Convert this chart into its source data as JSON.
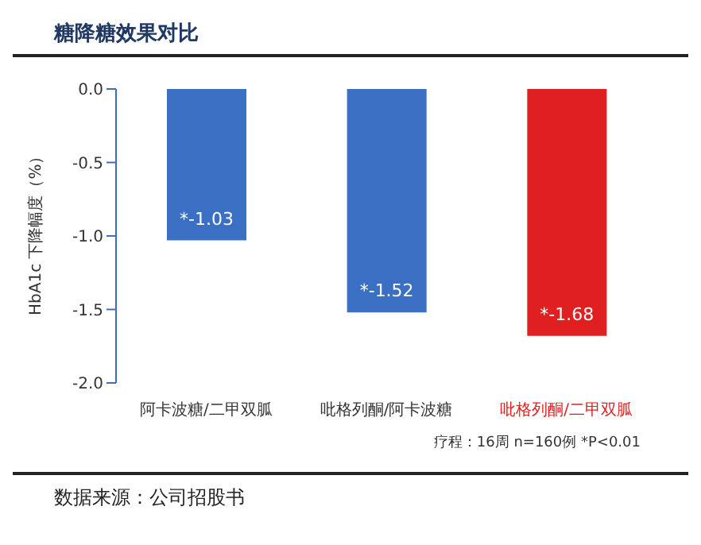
{
  "chart_data": {
    "type": "bar",
    "title": "糖降糖效果对比",
    "ylabel": "HbA1c 下降幅度（%）",
    "categories": [
      "阿卡波糖/二甲双胍",
      "吡格列酮/阿卡波糖",
      "吡格列酮/二甲双胍"
    ],
    "values": [
      -1.03,
      -1.52,
      -1.68
    ],
    "colors": [
      "#3a6fc4",
      "#3a6fc4",
      "#e02020"
    ],
    "value_labels": [
      "*-1.03",
      "*-1.52",
      "*-1.68"
    ],
    "ylim": [
      -2,
      0
    ],
    "yticks": [
      {
        "value": 0,
        "label": "0.0"
      },
      {
        "value": -0.5,
        "label": "-0.5"
      },
      {
        "value": -1,
        "label": "-1.0"
      },
      {
        "value": -1.5,
        "label": "-1.5"
      },
      {
        "value": -2,
        "label": "-2.0"
      }
    ],
    "grid": false,
    "annotations": [
      "疗程：16周   n=160例   *P<0.01",
      "数据来源：公司招股书"
    ]
  }
}
